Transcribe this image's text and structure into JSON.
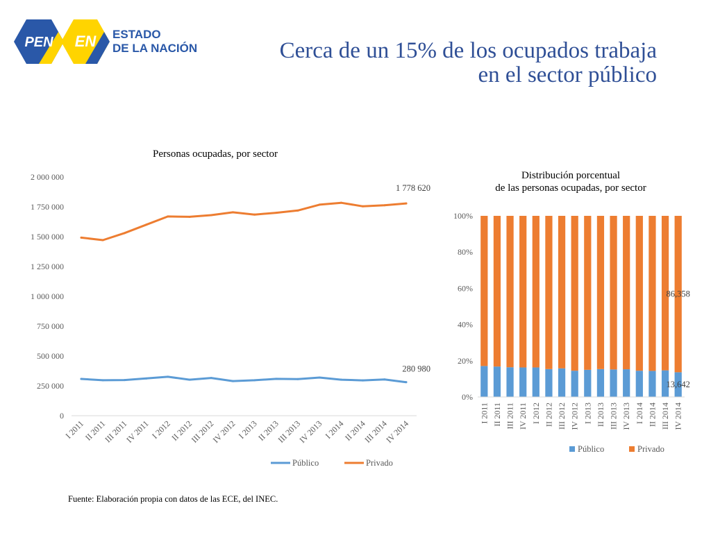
{
  "header": {
    "logo_pen": "PEN",
    "logo_en": "EN",
    "logo_text_1": "ESTADO",
    "logo_text_2": "DE LA NACIÓN",
    "title_line1": "Cerca de un 15% de los ocupados trabaja",
    "title_line2": "en el sector público"
  },
  "colors": {
    "publico": "#5b9bd5",
    "privado": "#ed7d31",
    "title": "#2f4f96",
    "logo_blue": "#2a58a8",
    "logo_yellow": "#ffd400"
  },
  "chart_data": [
    {
      "type": "line",
      "title": "Personas ocupadas, por sector",
      "categories": [
        "I 2011",
        "II 2011",
        "III 2011",
        "IV 2011",
        "I 2012",
        "II 2012",
        "III 2012",
        "IV 2012",
        "I 2013",
        "II 2013",
        "III 2013",
        "IV 2013",
        "I 2014",
        "II 2014",
        "III 2014",
        "IV 2014"
      ],
      "ylim": [
        0,
        2000000
      ],
      "yticks": [
        0,
        250000,
        500000,
        750000,
        1000000,
        1250000,
        1500000,
        1750000,
        2000000
      ],
      "ytick_labels": [
        "0",
        "250 000",
        "500 000",
        "750 000",
        "1 000 000",
        "1 250 000",
        "1 500 000",
        "1 750 000",
        "2 000 000"
      ],
      "series": [
        {
          "name": "Público",
          "color": "#5b9bd5",
          "values": [
            308000,
            297000,
            299000,
            312000,
            326000,
            302000,
            316000,
            290000,
            297000,
            309000,
            307000,
            320000,
            302000,
            296000,
            304000,
            280980
          ]
        },
        {
          "name": "Privado",
          "color": "#ed7d31",
          "values": [
            1492000,
            1471000,
            1530000,
            1600000,
            1669000,
            1666000,
            1680000,
            1704000,
            1685000,
            1700000,
            1719000,
            1768000,
            1784000,
            1754000,
            1763000,
            1778620
          ]
        }
      ],
      "end_labels": {
        "Privado": "1 778 620",
        "Público": "280 980"
      },
      "legend_position": "bottom"
    },
    {
      "type": "bar",
      "stacked": true,
      "title_line1": "Distribución porcentual",
      "title_line2": "de las personas ocupadas, por sector",
      "categories": [
        "I 2011",
        "II 2011",
        "III 2011",
        "IV 2011",
        "I 2012",
        "II 2012",
        "III 2012",
        "IV 2012",
        "I 2013",
        "II 2013",
        "III 2013",
        "IV 2013",
        "I 2014",
        "II 2014",
        "III 2014",
        "IV 2014"
      ],
      "ylim": [
        0,
        100
      ],
      "yticks": [
        0,
        20,
        40,
        60,
        80,
        100
      ],
      "ytick_labels": [
        "0%",
        "20%",
        "40%",
        "60%",
        "80%",
        "100%"
      ],
      "series": [
        {
          "name": "Público",
          "color": "#5b9bd5",
          "values": [
            17.1,
            16.8,
            16.4,
            16.3,
            16.3,
            15.4,
            15.8,
            14.5,
            15.0,
            15.4,
            15.2,
            15.3,
            14.5,
            14.4,
            14.7,
            13.642
          ]
        },
        {
          "name": "Privado",
          "color": "#ed7d31",
          "values": [
            82.9,
            83.2,
            83.6,
            83.7,
            83.7,
            84.6,
            84.2,
            85.5,
            85.0,
            84.6,
            84.8,
            84.7,
            85.5,
            85.6,
            85.3,
            86.358
          ]
        }
      ],
      "end_labels": {
        "Privado": "86,358",
        "Público": "13,642"
      },
      "legend_position": "bottom"
    }
  ],
  "source": "Fuente: Elaboración propia con datos de las ECE, del INEC."
}
